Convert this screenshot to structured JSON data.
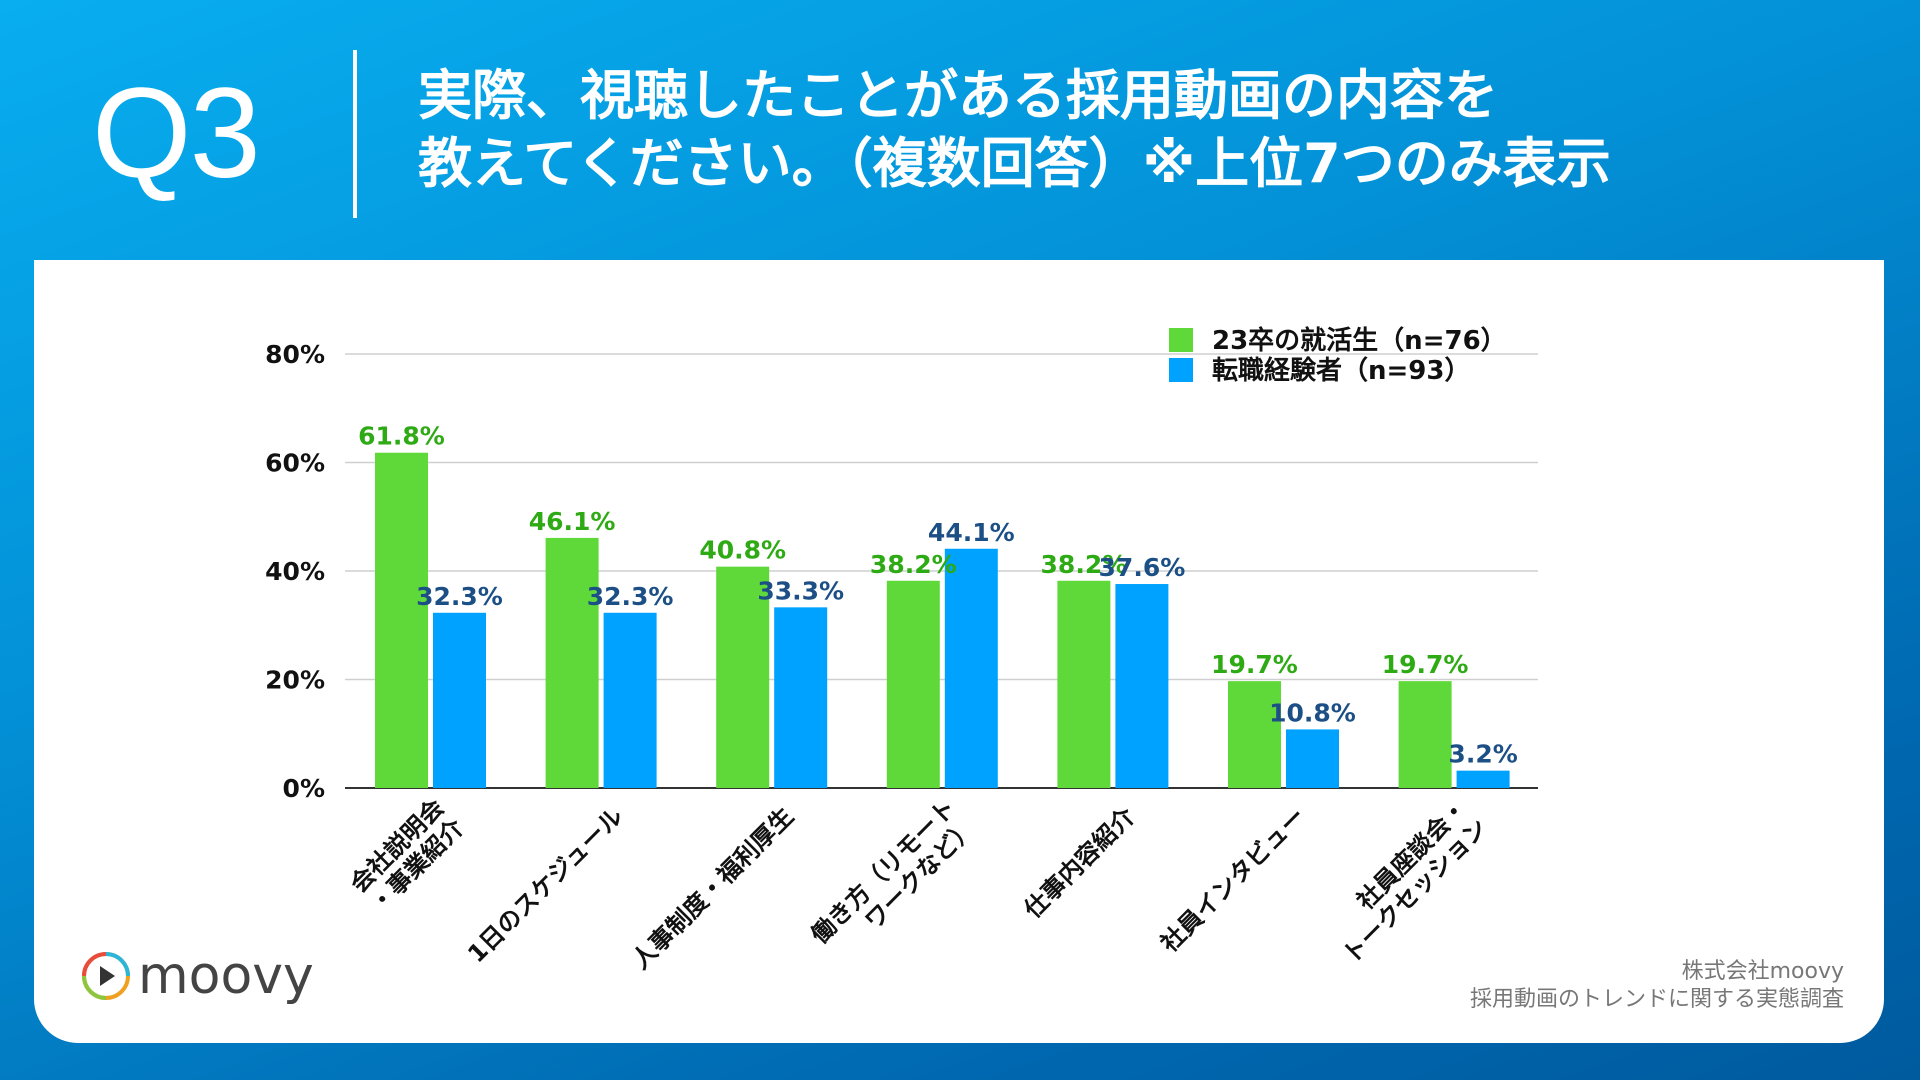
{
  "header": {
    "question_number": "Q3",
    "title_line1": "実際、視聴したことがある採用動画の内容を",
    "title_line2": "教えてください。（複数回答）※上位7つのみ表示"
  },
  "colors": {
    "series1": "#5fd93a",
    "series2": "#00a2ff",
    "label1": "#2eaa14",
    "label2": "#1b4f85"
  },
  "chart_data": {
    "type": "bar",
    "categories": [
      [
        "会社説明会",
        "・事業紹介"
      ],
      [
        "1日のスケジュール"
      ],
      [
        "人事制度・福利厚生"
      ],
      [
        "働き方（リモート",
        "ワークなど）"
      ],
      [
        "仕事内容紹介"
      ],
      [
        "社員インタビュー"
      ],
      [
        "社員座談会・",
        "トークセッション"
      ]
    ],
    "series": [
      {
        "name": "23卒の就活生（n=76）",
        "values": [
          61.8,
          46.1,
          40.8,
          38.2,
          38.2,
          19.7,
          19.7
        ],
        "labels": [
          "61.8%",
          "46.1%",
          "40.8%",
          "38.2%",
          "38.2%",
          "19.7%",
          "19.7%"
        ]
      },
      {
        "name": "転職経験者（n=93）",
        "values": [
          32.3,
          32.3,
          33.3,
          44.1,
          37.6,
          10.8,
          3.2
        ],
        "labels": [
          "32.3%",
          "32.3%",
          "33.3%",
          "44.1%",
          "37.6%",
          "10.8%",
          "3.2%"
        ]
      }
    ],
    "ylim": [
      0,
      80
    ],
    "yticks": [
      0,
      20,
      40,
      60,
      80
    ],
    "ytick_labels": [
      "0%",
      "20%",
      "40%",
      "60%",
      "80%"
    ],
    "grid": true,
    "legend": "top-right"
  },
  "footer": {
    "logo_text": "moovy",
    "company": "株式会社moovy",
    "survey": "採用動画のトレンドに関する実態調査"
  }
}
